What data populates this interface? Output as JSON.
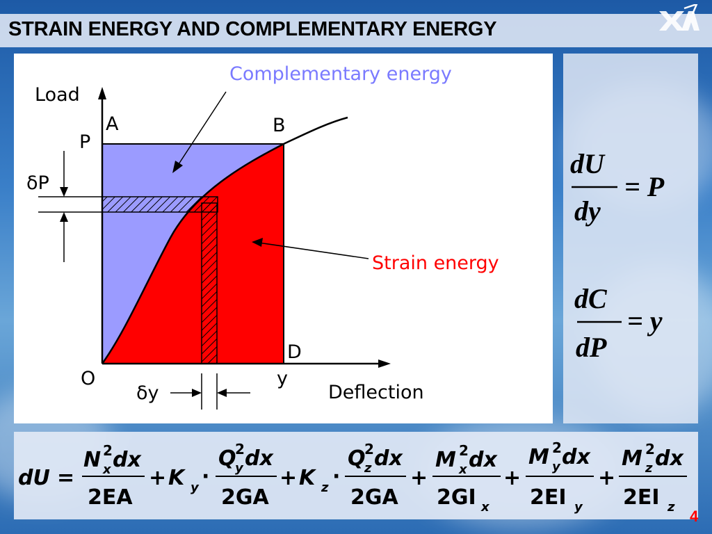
{
  "slide": {
    "title": "STRAIN ENERGY AND COMPLEMENTARY ENERGY",
    "page_number": "4"
  },
  "diagram": {
    "label_load": "Load",
    "label_deflection": "Deflection",
    "label_complementary": "Complementary energy",
    "label_strain": "Strain energy",
    "point_A": "A",
    "point_B": "B",
    "point_D": "D",
    "point_O": "O",
    "label_P": "P",
    "label_y": "y",
    "label_dP": "δP",
    "label_dy": "δy",
    "colors": {
      "complementary_fill": "#9b9bff",
      "strain_fill": "#ff0000"
    }
  },
  "equations": {
    "eq1": {
      "num": "dU",
      "den": "dy",
      "rhs": "= P"
    },
    "eq2": {
      "num": "dC",
      "den": "dP",
      "rhs": "= y"
    }
  },
  "formula": {
    "lhs": "dU",
    "eq": "=",
    "t1": {
      "num_a": "N",
      "num_sup": "2",
      "num_sub": "x",
      "num_b": "dx",
      "den": "2EA"
    },
    "plus1": "+",
    "k1": {
      "K": "K",
      "sub": "y",
      "dot": "·"
    },
    "t2": {
      "num_a": "Q",
      "num_sup": "2",
      "num_sub": "y",
      "num_b": "dx",
      "den": "2GA"
    },
    "plus2": "+",
    "k2": {
      "K": "K",
      "sub": "z",
      "dot": "·"
    },
    "t3": {
      "num_a": "Q",
      "num_sup": "2",
      "num_sub": "z",
      "num_b": "dx",
      "den": "2GA"
    },
    "plus3": "+",
    "t4": {
      "num_a": "M",
      "num_sup": "2",
      "num_sub": "x",
      "num_b": "dx",
      "den_a": "2GI",
      "den_sub": "x"
    },
    "plus4": "+",
    "t5": {
      "num_a": "M",
      "num_sup": "2",
      "num_sub": "y",
      "num_b": "dx",
      "den_a": "2EI",
      "den_sub": "y"
    },
    "plus5": "+",
    "t6": {
      "num_a": "M",
      "num_sup": "2",
      "num_sub": "z",
      "num_b": "dx",
      "den_a": "2EI",
      "den_sub": "z"
    }
  }
}
